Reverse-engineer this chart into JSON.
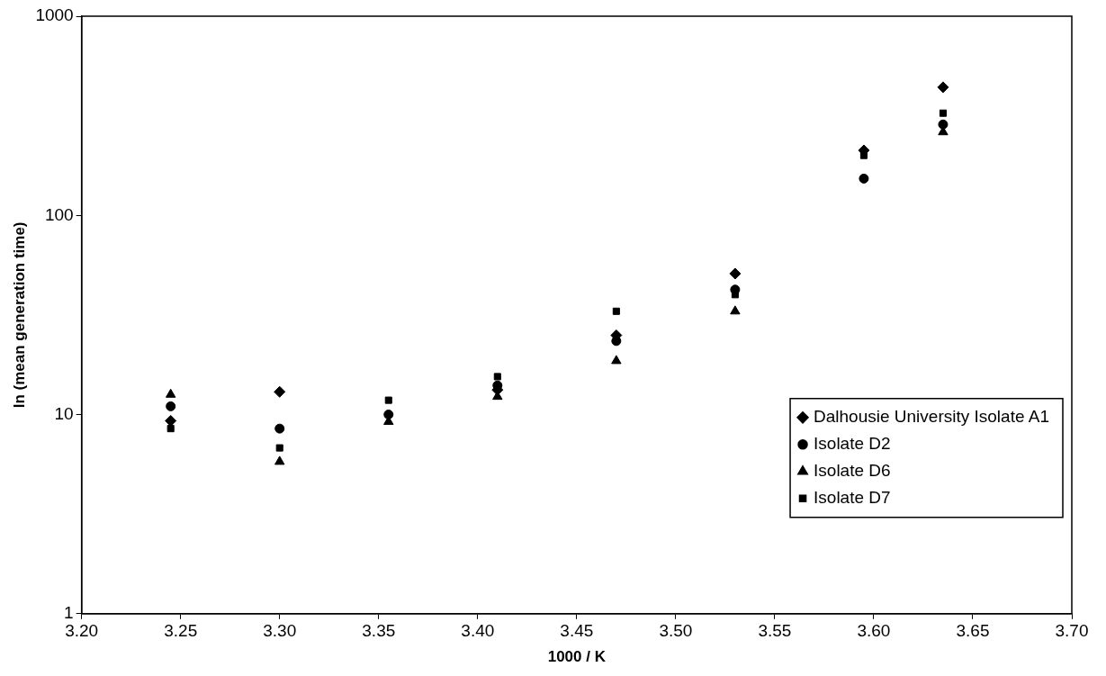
{
  "chart_data": {
    "type": "scatter",
    "xlabel": "1000 / K",
    "ylabel": "ln (mean generation time)",
    "x": [
      3.245,
      3.3,
      3.355,
      3.41,
      3.47,
      3.53,
      3.595,
      3.635
    ],
    "series": [
      {
        "name": "Dalhousie University Isolate A1",
        "color": "#000000",
        "marker": "diamond",
        "values": [
          9.3,
          13,
          null,
          13.3,
          25,
          51,
          212,
          440
        ]
      },
      {
        "name": "Isolate D2",
        "color": "#000000",
        "marker": "circle",
        "values": [
          11,
          8.5,
          10,
          14,
          23.4,
          42.4,
          153,
          286
        ]
      },
      {
        "name": "Isolate D6",
        "color": "#000000",
        "marker": "triangle",
        "values": [
          12.6,
          5.8,
          9.2,
          12.3,
          18.6,
          33,
          null,
          262
        ]
      },
      {
        "name": "Isolate D7",
        "color": "#000000",
        "marker": "square",
        "values": [
          8.5,
          6.8,
          11.8,
          15.5,
          33,
          40,
          200,
          326
        ]
      }
    ],
    "log": "y",
    "xlim": [
      3.2,
      3.7
    ],
    "ylim": [
      1,
      1000
    ],
    "xticks": [
      {
        "value": 3.2,
        "label": "3.20"
      },
      {
        "value": 3.25,
        "label": "3.25"
      },
      {
        "value": 3.3,
        "label": "3.30"
      },
      {
        "value": 3.35,
        "label": "3.35"
      },
      {
        "value": 3.4,
        "label": "3.40"
      },
      {
        "value": 3.45,
        "label": "3.45"
      },
      {
        "value": 3.5,
        "label": "3.50"
      },
      {
        "value": 3.55,
        "label": "3.55"
      },
      {
        "value": 3.6,
        "label": "3.60"
      },
      {
        "value": 3.65,
        "label": "3.65"
      },
      {
        "value": 3.7,
        "label": "3.70"
      }
    ],
    "yticks": [
      1,
      10,
      100,
      1000
    ],
    "grid": false,
    "legend": "bottom right"
  }
}
